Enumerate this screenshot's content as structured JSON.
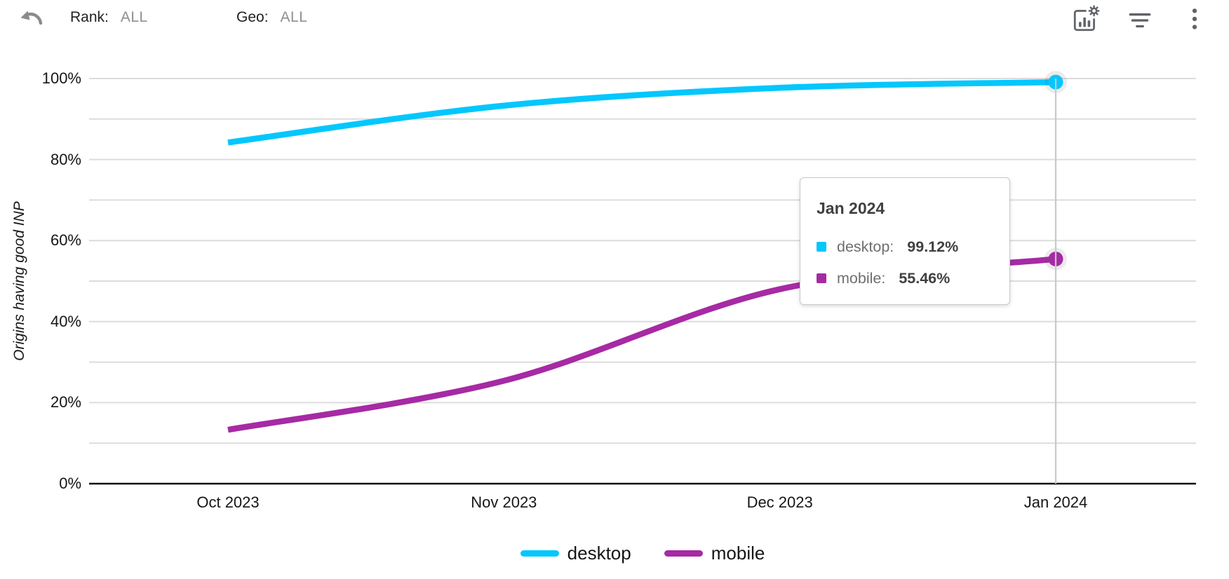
{
  "toolbar": {
    "rank": {
      "label": "Rank:",
      "value": "ALL"
    },
    "geo": {
      "label": "Geo:",
      "value": "ALL"
    },
    "icons": [
      "undo-icon",
      "chart-settings-icon",
      "filter-icon",
      "more-vertical-icon"
    ]
  },
  "chart_data": {
    "type": "line",
    "title": "",
    "xlabel": "",
    "ylabel": "Origins having good INP",
    "categories": [
      "Oct 2023",
      "Nov 2023",
      "Dec 2023",
      "Jan 2024"
    ],
    "series": [
      {
        "name": "desktop",
        "color": "#04c7fd",
        "values": [
          84.2,
          93.3,
          97.7,
          99.12
        ]
      },
      {
        "name": "mobile",
        "color": "#a62aa4",
        "values": [
          13.3,
          25.4,
          48.0,
          55.46
        ]
      }
    ],
    "ylim": [
      0,
      100
    ],
    "y_grid_step": 10,
    "y_label_step": 20,
    "y_tick_suffix": "%",
    "grid": true,
    "smooth_lines": true,
    "legend_position": "bottom",
    "highlight_category": "Jan 2024",
    "colors": {
      "gridline": "#dcdcdc",
      "axis_line": "#111111",
      "crosshair": "#c8c8c8"
    }
  },
  "tooltip": {
    "title": "Jan 2024",
    "rows": [
      {
        "label": "desktop",
        "value": "99.12%",
        "color": "#04c7fd"
      },
      {
        "label": "mobile",
        "value": "55.46%",
        "color": "#a62aa4"
      }
    ]
  },
  "legend": {
    "items": [
      {
        "label": "desktop",
        "color": "#04c7fd"
      },
      {
        "label": "mobile",
        "color": "#a62aa4"
      }
    ]
  }
}
